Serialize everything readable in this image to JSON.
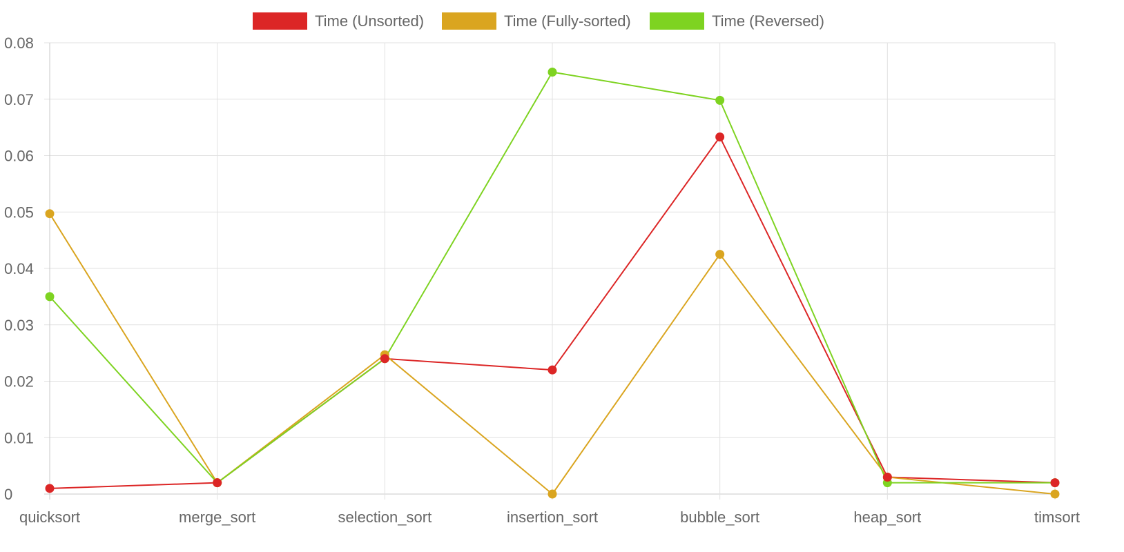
{
  "chart_data": {
    "type": "line",
    "title": "",
    "xlabel": "",
    "ylabel": "",
    "categories": [
      "quicksort",
      "merge_sort",
      "selection_sort",
      "insertion_sort",
      "bubble_sort",
      "heap_sort",
      "timsort"
    ],
    "ylim": [
      0,
      0.08
    ],
    "yticks": [
      "0",
      "0.01",
      "0.02",
      "0.03",
      "0.04",
      "0.05",
      "0.06",
      "0.07",
      "0.08"
    ],
    "grid": true,
    "legend_position": "top-center",
    "series": [
      {
        "name": "Time (Unsorted)",
        "color": "#dc2626",
        "values": [
          0.001,
          0.002,
          0.024,
          0.022,
          0.0633,
          0.003,
          0.002
        ]
      },
      {
        "name": "Time (Fully-sorted)",
        "color": "#daa520",
        "values": [
          0.0497,
          0.002,
          0.0247,
          0.0,
          0.0425,
          0.003,
          0.0
        ]
      },
      {
        "name": "Time (Reversed)",
        "color": "#7ed321",
        "values": [
          0.035,
          0.002,
          0.024,
          0.0748,
          0.0698,
          0.002,
          0.002
        ]
      }
    ]
  }
}
